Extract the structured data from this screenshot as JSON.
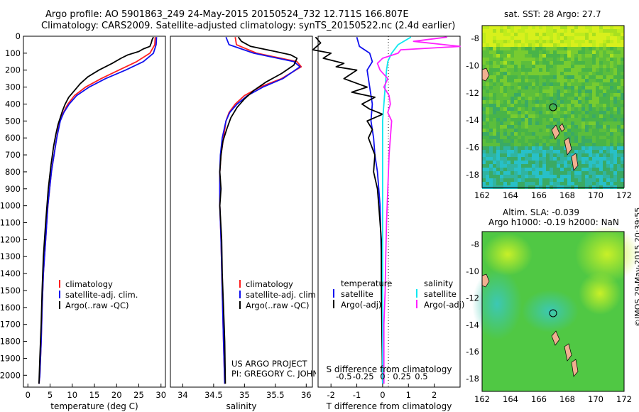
{
  "header": {
    "title_line1": "Argo profile: AO 5901863_249 24-May-2015 20150524_732 12.711S 166.807E",
    "title_line2": "Climatology: CARS2009. Satellite-adjusted climatology: synTS_20150522.nc (2.4d earlier)"
  },
  "colors": {
    "clim": "#ff2020",
    "sat": "#1010ee",
    "argo": "#000000",
    "cyan": "#10e8f0",
    "magenta": "#ff20ff"
  },
  "chart_data": [
    {
      "type": "line",
      "name": "temperature-profile",
      "xlabel": "temperature (deg C)",
      "xlim": [
        -1,
        31
      ],
      "ylim": [
        2070,
        0
      ],
      "xticks": [
        "0",
        "5",
        "10",
        "15",
        "20",
        "25",
        "30"
      ],
      "xtick_values": [
        0,
        5,
        10,
        15,
        20,
        25,
        30
      ],
      "yticks": [
        "0",
        "100",
        "200",
        "300",
        "400",
        "500",
        "600",
        "700",
        "800",
        "900",
        "1000",
        "1100",
        "1200",
        "1300",
        "1400",
        "1500",
        "1600",
        "1700",
        "1800",
        "1900",
        "2000"
      ],
      "ytick_values": [
        0,
        100,
        200,
        300,
        400,
        500,
        600,
        700,
        800,
        900,
        1000,
        1100,
        1200,
        1300,
        1400,
        1500,
        1600,
        1700,
        1800,
        1900,
        2000
      ],
      "legend": [
        "climatology",
        "satellite-adj. clim.",
        "Argo(..raw -QC)"
      ],
      "series": [
        {
          "name": "climatology",
          "color": "clim",
          "x": [
            28.7,
            28.6,
            27.5,
            24.5,
            20.5,
            16.5,
            13.0,
            10.5,
            9.0,
            8.0,
            7.2,
            6.5,
            5.9,
            5.3,
            4.5,
            4.0,
            3.5,
            3.2,
            3.0,
            2.7,
            2.5
          ],
          "y": [
            5,
            50,
            100,
            150,
            200,
            250,
            300,
            350,
            400,
            450,
            500,
            600,
            700,
            800,
            1000,
            1200,
            1400,
            1600,
            1800,
            2000,
            2050
          ]
        },
        {
          "name": "satellite-adj. clim.",
          "color": "sat",
          "x": [
            29.0,
            28.9,
            28.3,
            26.0,
            22.0,
            17.5,
            13.8,
            11.0,
            9.3,
            8.1,
            7.3,
            6.5,
            5.9,
            5.3,
            4.5,
            4.0,
            3.5,
            3.2,
            3.0,
            2.7,
            2.5
          ],
          "y": [
            5,
            50,
            100,
            150,
            200,
            250,
            300,
            350,
            400,
            450,
            500,
            600,
            700,
            800,
            1000,
            1200,
            1400,
            1600,
            1800,
            2000,
            2050
          ]
        },
        {
          "name": "Argo(..raw -QC)",
          "color": "argo",
          "x": [
            28.3,
            28.0,
            27.8,
            27.5,
            26.0,
            25.0,
            22.5,
            21.0,
            19.0,
            16.0,
            13.5,
            11.8,
            10.5,
            9.2,
            8.4,
            7.8,
            7.3,
            6.8,
            6.3,
            5.8,
            5.2,
            4.6,
            4.0,
            3.5,
            3.2,
            3.0,
            2.7,
            2.5
          ],
          "y": [
            5,
            20,
            40,
            60,
            75,
            90,
            110,
            130,
            160,
            200,
            240,
            280,
            320,
            360,
            400,
            440,
            480,
            520,
            580,
            650,
            760,
            900,
            1100,
            1300,
            1500,
            1700,
            1900,
            2050
          ]
        }
      ]
    },
    {
      "type": "line",
      "name": "salinity-profile",
      "xlabel": "salinity",
      "xlim": [
        33.8,
        36.1
      ],
      "ylim": [
        2070,
        0
      ],
      "xticks": [
        "34",
        "34.5",
        "35",
        "35.5",
        "36"
      ],
      "xtick_values": [
        34,
        34.5,
        35,
        35.5,
        36
      ],
      "legend": [
        "climatology",
        "satellite-adj. clim.",
        "Argo(..raw -QC)"
      ],
      "annotation": [
        "US ARGO PROJECT",
        "PI: GREGORY C. JOHNSON"
      ],
      "series": [
        {
          "name": "climatology",
          "color": "clim",
          "x": [
            34.85,
            34.87,
            35.2,
            35.85,
            35.92,
            35.6,
            35.25,
            35.0,
            34.85,
            34.75,
            34.7,
            34.66,
            34.62,
            34.6,
            34.6,
            34.62,
            34.64,
            34.66,
            34.68
          ],
          "y": [
            5,
            50,
            100,
            150,
            180,
            250,
            300,
            350,
            400,
            450,
            500,
            600,
            700,
            800,
            1000,
            1200,
            1500,
            1800,
            2050
          ]
        },
        {
          "name": "satellite-adj. clim.",
          "color": "sat",
          "x": [
            34.7,
            34.75,
            35.15,
            35.8,
            35.9,
            35.62,
            35.3,
            35.05,
            34.88,
            34.76,
            34.7,
            34.64,
            34.61,
            34.6,
            34.6,
            34.62,
            34.64,
            34.66,
            34.68
          ],
          "y": [
            5,
            50,
            100,
            150,
            180,
            250,
            300,
            350,
            400,
            450,
            500,
            600,
            700,
            800,
            1000,
            1200,
            1500,
            1800,
            2050
          ]
        },
        {
          "name": "Argo(..raw -QC)",
          "color": "argo",
          "x": [
            34.9,
            34.95,
            35.1,
            35.5,
            35.75,
            35.85,
            35.8,
            35.6,
            35.35,
            35.15,
            35.0,
            34.88,
            34.78,
            34.72,
            34.65,
            34.62,
            34.6,
            34.62,
            34.6,
            34.63,
            34.64,
            34.66,
            34.68,
            34.69
          ],
          "y": [
            5,
            30,
            60,
            90,
            110,
            130,
            170,
            220,
            270,
            320,
            370,
            420,
            480,
            540,
            620,
            700,
            800,
            900,
            1000,
            1200,
            1400,
            1600,
            1800,
            2050
          ]
        }
      ]
    },
    {
      "type": "line",
      "name": "difference-profile",
      "xlabel": "T difference from climatology",
      "xlabel2": "S difference from climatology",
      "xlim": [
        -2.5,
        3
      ],
      "ylim": [
        2070,
        0
      ],
      "xticks": [
        "-2",
        "-1",
        "0",
        "1",
        "2"
      ],
      "xtick_values": [
        -2,
        -1,
        0,
        1,
        2
      ],
      "sticks": [
        "-0.5",
        "-0.25",
        "0",
        "0.25",
        "0.5"
      ],
      "stick_values": [
        -1.5,
        -0.75,
        0,
        0.75,
        1.5
      ],
      "legend_headers": [
        "temperature",
        "salinity"
      ],
      "legend_items": [
        "satellite",
        "Argo(-adj)",
        "satellite",
        "Argo(-adj)"
      ],
      "series": [
        {
          "name": "temperature satellite",
          "color": "sat",
          "x": [
            -1.0,
            -0.9,
            -0.5,
            -0.4,
            -0.6,
            -0.5,
            -0.4,
            -0.45,
            -0.35,
            -0.3,
            -0.2,
            -0.1,
            -0.05,
            0.0
          ],
          "y": [
            5,
            60,
            100,
            150,
            200,
            300,
            400,
            500,
            600,
            700,
            800,
            1000,
            1300,
            2050
          ]
        },
        {
          "name": "temperature Argo",
          "color": "argo",
          "x": [
            -2.6,
            -2.4,
            -2.7,
            -2.0,
            -2.3,
            -1.5,
            -1.8,
            -1.0,
            -1.5,
            -0.6,
            -1.2,
            -0.3,
            -0.8,
            -0.5,
            0.0,
            -0.6,
            -0.4,
            -0.55,
            -0.3,
            -0.35,
            -0.2,
            -0.15,
            -0.05,
            -0.05,
            0.0
          ],
          "y": [
            5,
            40,
            80,
            100,
            130,
            160,
            180,
            200,
            250,
            300,
            330,
            360,
            400,
            430,
            460,
            500,
            550,
            600,
            700,
            800,
            900,
            1000,
            1200,
            1500,
            2050
          ]
        },
        {
          "name": "salinity satellite",
          "color": "cyan",
          "x": [
            1.1,
            0.6,
            0.35,
            0.2,
            0.15,
            0.1,
            0.05,
            0.0,
            0.0,
            0.0,
            0.0
          ],
          "y": [
            5,
            50,
            100,
            150,
            200,
            300,
            400,
            500,
            800,
            1200,
            2050
          ]
        },
        {
          "name": "salinity Argo",
          "color": "magenta",
          "x": [
            2.5,
            1.2,
            3.0,
            0.7,
            0.6,
            0.0,
            -0.2,
            -0.1,
            0.2,
            0.05,
            0.25,
            0.3,
            0.2,
            0.35,
            0.3,
            0.25,
            0.2,
            0.15,
            0.12,
            0.1,
            0.05,
            0.05
          ],
          "y": [
            5,
            30,
            60,
            80,
            100,
            130,
            160,
            200,
            250,
            300,
            350,
            400,
            450,
            500,
            600,
            700,
            900,
            1100,
            1300,
            1500,
            1700,
            2050
          ]
        }
      ]
    }
  ],
  "maps": {
    "sst_title": "sat. SST: 28 Argo: 27.7",
    "sla_title1": "Altim. SLA: -0.039",
    "sla_title2": "Argo h1000: -0.19 h2000: NaN",
    "lon_ticks": [
      "162",
      "164",
      "166",
      "168",
      "170",
      "172"
    ],
    "lat_ticks": [
      "-8",
      "-10",
      "-12",
      "-14",
      "-16",
      "-18"
    ],
    "credit": "©IMOS 29-May-2015 20:39:55"
  }
}
